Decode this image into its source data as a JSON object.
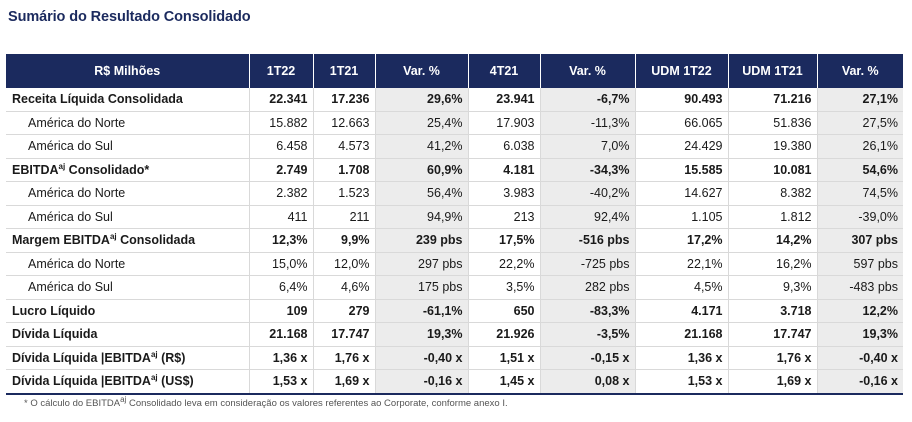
{
  "title": "Sumário do Resultado Consolidado",
  "columns": [
    "R$ Milhões",
    "1T22",
    "1T21",
    "Var. %",
    "4T21",
    "Var. %",
    "UDM 1T22",
    "UDM 1T21",
    "Var. %"
  ],
  "sup": "aj",
  "rows": [
    {
      "label": "Receita Líquida Consolidada",
      "style": "bold",
      "values": [
        "22.341",
        "17.236",
        "29,6%",
        "23.941",
        "-6,7%",
        "90.493",
        "71.216",
        "27,1%"
      ]
    },
    {
      "label": "América do Norte",
      "style": "sub",
      "values": [
        "15.882",
        "12.663",
        "25,4%",
        "17.903",
        "-11,3%",
        "66.065",
        "51.836",
        "27,5%"
      ]
    },
    {
      "label": "América do Sul",
      "style": "sub",
      "values": [
        "6.458",
        "4.573",
        "41,2%",
        "6.038",
        "7,0%",
        "24.429",
        "19.380",
        "26,1%"
      ]
    },
    {
      "label_pre": "EBITDA",
      "label_post": " Consolidado*",
      "style": "bold",
      "values": [
        "2.749",
        "1.708",
        "60,9%",
        "4.181",
        "-34,3%",
        "15.585",
        "10.081",
        "54,6%"
      ]
    },
    {
      "label": "América do Norte",
      "style": "sub",
      "values": [
        "2.382",
        "1.523",
        "56,4%",
        "3.983",
        "-40,2%",
        "14.627",
        "8.382",
        "74,5%"
      ]
    },
    {
      "label": "América do Sul",
      "style": "sub",
      "values": [
        "411",
        "211",
        "94,9%",
        "213",
        "92,4%",
        "1.105",
        "1.812",
        "-39,0%"
      ]
    },
    {
      "label_pre": "Margem EBITDA",
      "label_post": " Consolidada",
      "style": "bold",
      "values": [
        "12,3%",
        "9,9%",
        "239 pbs",
        "17,5%",
        "-516 pbs",
        "17,2%",
        "14,2%",
        "307 pbs"
      ]
    },
    {
      "label": "América do Norte",
      "style": "sub",
      "values": [
        "15,0%",
        "12,0%",
        "297 pbs",
        "22,2%",
        "-725 pbs",
        "22,1%",
        "16,2%",
        "597 pbs"
      ]
    },
    {
      "label": "América do Sul",
      "style": "sub",
      "values": [
        "6,4%",
        "4,6%",
        "175 pbs",
        "3,5%",
        "282 pbs",
        "4,5%",
        "9,3%",
        "-483 pbs"
      ]
    },
    {
      "label": "Lucro Líquido",
      "style": "bold",
      "values": [
        "109",
        "279",
        "-61,1%",
        "650",
        "-83,3%",
        "4.171",
        "3.718",
        "12,2%"
      ]
    },
    {
      "label": "Dívida Líquida",
      "style": "bold",
      "values": [
        "21.168",
        "17.747",
        "19,3%",
        "21.926",
        "-3,5%",
        "21.168",
        "17.747",
        "19,3%"
      ]
    },
    {
      "label_pre": "Dívida Líquida |EBITDA",
      "label_post": " (R$)",
      "style": "bold",
      "values": [
        "1,36 x",
        "1,76 x",
        "-0,40 x",
        "1,51 x",
        "-0,15 x",
        "1,36 x",
        "1,76 x",
        "-0,40 x"
      ]
    },
    {
      "label_pre": "Dívida Líquida |EBITDA",
      "label_post": " (US$)",
      "style": "bold",
      "values": [
        "1,53 x",
        "1,69 x",
        "-0,16 x",
        "1,45 x",
        "0,08 x",
        "1,53 x",
        "1,69 x",
        "-0,16 x"
      ]
    }
  ],
  "footnote": {
    "pre": "* O cálculo do EBITDA",
    "post": " Consolidado leva em consideração os valores referentes ao Corporate, conforme anexo I."
  },
  "colors": {
    "header_bg": "#1b2a5e",
    "shade": "#ececec",
    "title": "#1b2a5e"
  }
}
